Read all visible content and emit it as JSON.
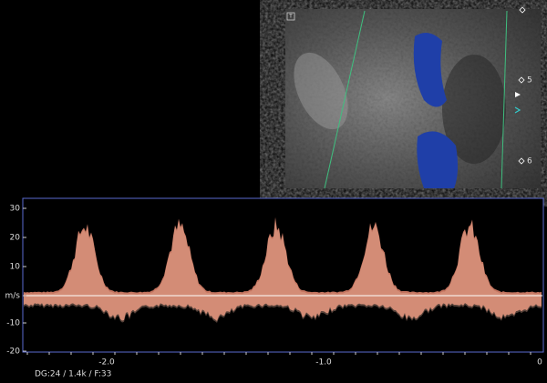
{
  "image_panel": {
    "corner_mark": "T",
    "depth_labels": [
      "5",
      "6"
    ]
  },
  "doppler": {
    "y_labels": [
      "30",
      "20",
      "10",
      "m/s",
      "-10",
      "-20"
    ],
    "x_labels": [
      "-2.0",
      "-1.0",
      "0"
    ]
  },
  "footer": "DG:24   / 1.4k    / F:33"
}
